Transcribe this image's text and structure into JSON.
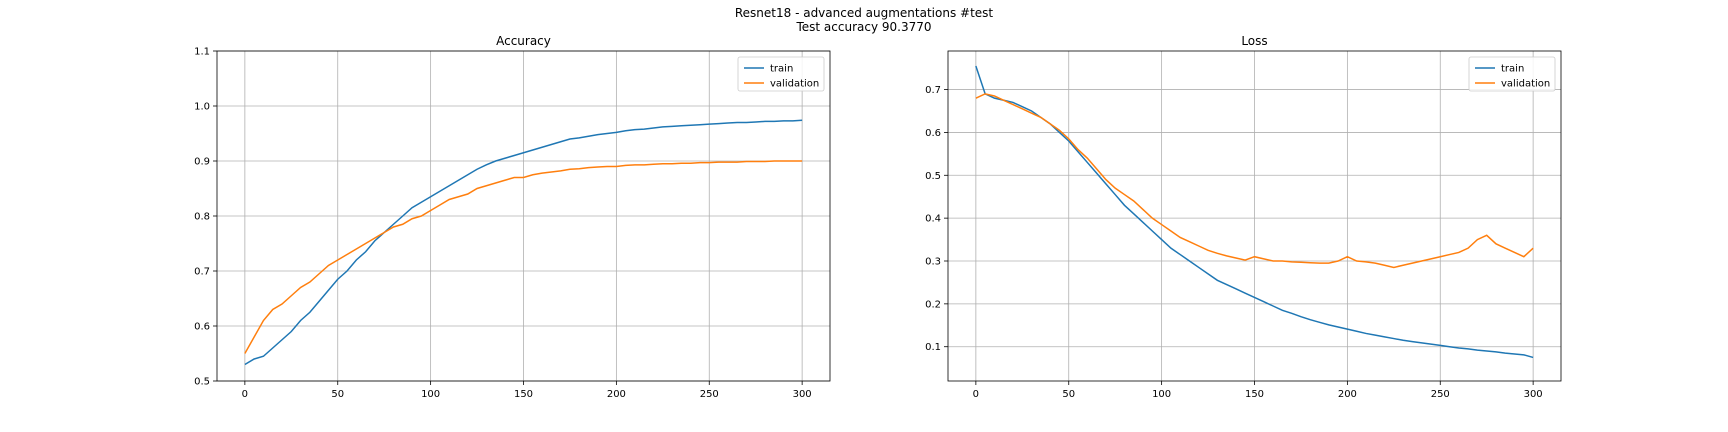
{
  "figure": {
    "title_line1": "Resnet18 - advanced augmentations #test",
    "title_line2": "Test accuracy 90.3770"
  },
  "chart_data": [
    {
      "type": "line",
      "title": "Accuracy",
      "xlabel": "",
      "ylabel": "",
      "xlim": [
        -15,
        315
      ],
      "ylim": [
        0.5,
        1.1
      ],
      "xticks": [
        0,
        50,
        100,
        150,
        200,
        250,
        300
      ],
      "yticks": [
        0.5,
        0.6,
        0.7,
        0.8,
        0.9,
        1.0,
        1.1
      ],
      "ytick_labels": [
        "0.5",
        "0.6",
        "0.7",
        "0.8",
        "0.9",
        "1.0",
        "1.1"
      ],
      "grid": true,
      "legend": "top-right",
      "series": [
        {
          "name": "train",
          "color": "#1f77b4",
          "x": [
            0,
            5,
            10,
            15,
            20,
            25,
            30,
            35,
            40,
            45,
            50,
            55,
            60,
            65,
            70,
            75,
            80,
            85,
            90,
            95,
            100,
            105,
            110,
            115,
            120,
            125,
            130,
            135,
            140,
            145,
            150,
            155,
            160,
            165,
            170,
            175,
            180,
            185,
            190,
            195,
            200,
            205,
            210,
            215,
            220,
            225,
            230,
            235,
            240,
            245,
            250,
            255,
            260,
            265,
            270,
            275,
            280,
            285,
            290,
            295,
            300
          ],
          "values": [
            0.53,
            0.54,
            0.545,
            0.56,
            0.575,
            0.59,
            0.61,
            0.625,
            0.645,
            0.665,
            0.685,
            0.7,
            0.72,
            0.735,
            0.755,
            0.77,
            0.785,
            0.8,
            0.815,
            0.825,
            0.835,
            0.845,
            0.855,
            0.865,
            0.875,
            0.885,
            0.893,
            0.9,
            0.905,
            0.91,
            0.915,
            0.92,
            0.925,
            0.93,
            0.935,
            0.94,
            0.942,
            0.945,
            0.948,
            0.95,
            0.952,
            0.955,
            0.957,
            0.958,
            0.96,
            0.962,
            0.963,
            0.964,
            0.965,
            0.966,
            0.967,
            0.968,
            0.969,
            0.97,
            0.97,
            0.971,
            0.972,
            0.972,
            0.973,
            0.973,
            0.974
          ]
        },
        {
          "name": "validation",
          "color": "#ff7f0e",
          "x": [
            0,
            5,
            10,
            15,
            20,
            25,
            30,
            35,
            40,
            45,
            50,
            55,
            60,
            65,
            70,
            75,
            80,
            85,
            90,
            95,
            100,
            105,
            110,
            115,
            120,
            125,
            130,
            135,
            140,
            145,
            150,
            155,
            160,
            165,
            170,
            175,
            180,
            185,
            190,
            195,
            200,
            205,
            210,
            215,
            220,
            225,
            230,
            235,
            240,
            245,
            250,
            255,
            260,
            265,
            270,
            275,
            280,
            285,
            290,
            295,
            300
          ],
          "values": [
            0.55,
            0.58,
            0.61,
            0.63,
            0.64,
            0.655,
            0.67,
            0.68,
            0.695,
            0.71,
            0.72,
            0.73,
            0.74,
            0.75,
            0.76,
            0.77,
            0.78,
            0.785,
            0.795,
            0.8,
            0.81,
            0.82,
            0.83,
            0.835,
            0.84,
            0.85,
            0.855,
            0.86,
            0.865,
            0.87,
            0.87,
            0.875,
            0.878,
            0.88,
            0.882,
            0.885,
            0.886,
            0.888,
            0.889,
            0.89,
            0.89,
            0.892,
            0.893,
            0.893,
            0.894,
            0.895,
            0.895,
            0.896,
            0.896,
            0.897,
            0.897,
            0.898,
            0.898,
            0.898,
            0.899,
            0.899,
            0.899,
            0.9,
            0.9,
            0.9,
            0.9
          ]
        }
      ]
    },
    {
      "type": "line",
      "title": "Loss",
      "xlabel": "",
      "ylabel": "",
      "xlim": [
        -15,
        315
      ],
      "ylim": [
        0.02,
        0.79
      ],
      "xticks": [
        0,
        50,
        100,
        150,
        200,
        250,
        300
      ],
      "yticks": [
        0.1,
        0.2,
        0.3,
        0.4,
        0.5,
        0.6,
        0.7
      ],
      "ytick_labels": [
        "0.1",
        "0.2",
        "0.3",
        "0.4",
        "0.5",
        "0.6",
        "0.7"
      ],
      "grid": true,
      "legend": "top-right",
      "series": [
        {
          "name": "train",
          "color": "#1f77b4",
          "x": [
            0,
            5,
            10,
            15,
            20,
            25,
            30,
            35,
            40,
            45,
            50,
            55,
            60,
            65,
            70,
            75,
            80,
            85,
            90,
            95,
            100,
            105,
            110,
            115,
            120,
            125,
            130,
            135,
            140,
            145,
            150,
            155,
            160,
            165,
            170,
            175,
            180,
            185,
            190,
            195,
            200,
            205,
            210,
            215,
            220,
            225,
            230,
            235,
            240,
            245,
            250,
            255,
            260,
            265,
            270,
            275,
            280,
            285,
            290,
            295,
            300
          ],
          "values": [
            0.755,
            0.69,
            0.68,
            0.675,
            0.67,
            0.66,
            0.65,
            0.635,
            0.62,
            0.6,
            0.58,
            0.555,
            0.53,
            0.505,
            0.48,
            0.455,
            0.43,
            0.41,
            0.39,
            0.37,
            0.35,
            0.33,
            0.315,
            0.3,
            0.285,
            0.27,
            0.255,
            0.245,
            0.235,
            0.225,
            0.215,
            0.205,
            0.195,
            0.185,
            0.178,
            0.17,
            0.163,
            0.157,
            0.151,
            0.146,
            0.141,
            0.136,
            0.131,
            0.127,
            0.123,
            0.119,
            0.115,
            0.112,
            0.109,
            0.106,
            0.103,
            0.1,
            0.097,
            0.095,
            0.092,
            0.09,
            0.088,
            0.085,
            0.083,
            0.081,
            0.075
          ]
        },
        {
          "name": "validation",
          "color": "#ff7f0e",
          "x": [
            0,
            5,
            10,
            15,
            20,
            25,
            30,
            35,
            40,
            45,
            50,
            55,
            60,
            65,
            70,
            75,
            80,
            85,
            90,
            95,
            100,
            105,
            110,
            115,
            120,
            125,
            130,
            135,
            140,
            145,
            150,
            155,
            160,
            165,
            170,
            175,
            180,
            185,
            190,
            195,
            200,
            205,
            210,
            215,
            220,
            225,
            230,
            235,
            240,
            245,
            250,
            255,
            260,
            265,
            270,
            275,
            280,
            285,
            290,
            295,
            300
          ],
          "values": [
            0.68,
            0.69,
            0.685,
            0.675,
            0.665,
            0.655,
            0.645,
            0.635,
            0.62,
            0.605,
            0.585,
            0.56,
            0.54,
            0.515,
            0.49,
            0.47,
            0.455,
            0.44,
            0.42,
            0.4,
            0.385,
            0.37,
            0.355,
            0.345,
            0.335,
            0.325,
            0.318,
            0.312,
            0.307,
            0.302,
            0.31,
            0.305,
            0.3,
            0.3,
            0.298,
            0.297,
            0.296,
            0.295,
            0.295,
            0.3,
            0.31,
            0.3,
            0.298,
            0.295,
            0.29,
            0.285,
            0.29,
            0.295,
            0.3,
            0.305,
            0.31,
            0.315,
            0.32,
            0.33,
            0.35,
            0.36,
            0.34,
            0.33,
            0.32,
            0.31,
            0.33
          ]
        }
      ]
    }
  ]
}
